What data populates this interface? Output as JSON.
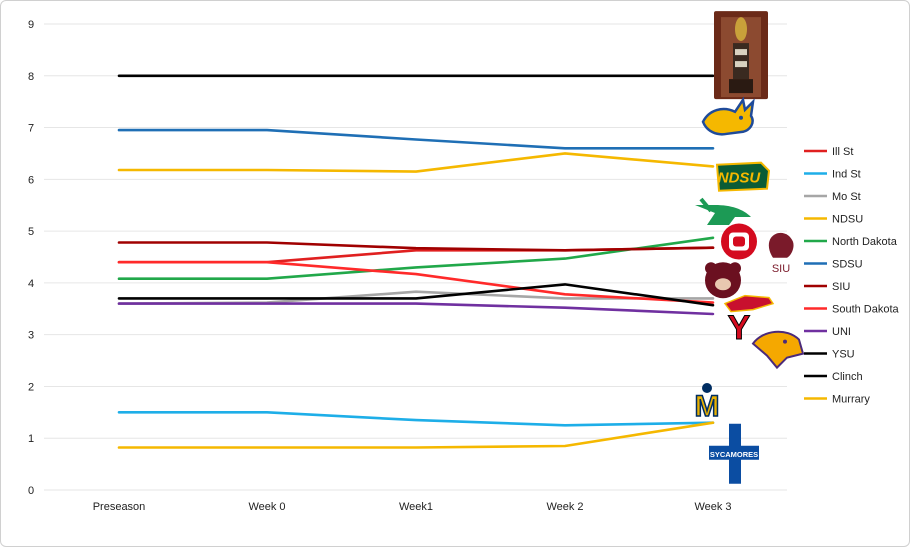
{
  "chart_data": {
    "type": "line",
    "title": "",
    "xlabel": "",
    "ylabel": "",
    "ylim": [
      0,
      9
    ],
    "yticks": [
      0,
      1,
      2,
      3,
      4,
      5,
      6,
      7,
      8,
      9
    ],
    "grid": "horizontal",
    "legend_position": "right",
    "categories": [
      "Preseason",
      "Week 0",
      "Week1",
      "Week 2",
      "Week 3"
    ],
    "series": [
      {
        "name": "Ill St",
        "color": "#e02020",
        "values": [
          4.4,
          4.4,
          4.63,
          4.63,
          4.68
        ]
      },
      {
        "name": "Ind St",
        "color": "#1eaee8",
        "values": [
          1.5,
          1.5,
          1.35,
          1.25,
          1.3
        ]
      },
      {
        "name": "Mo St",
        "color": "#a6a6a6",
        "values": [
          3.6,
          3.62,
          3.83,
          3.7,
          3.7
        ]
      },
      {
        "name": "NDSU",
        "color": "#f5b800",
        "values": [
          6.18,
          6.18,
          6.15,
          6.5,
          6.25
        ]
      },
      {
        "name": "North Dakota",
        "color": "#21a84a",
        "values": [
          4.08,
          4.08,
          4.3,
          4.47,
          4.87
        ]
      },
      {
        "name": "SDSU",
        "color": "#1f6fb5",
        "values": [
          6.95,
          6.95,
          6.77,
          6.6,
          6.6
        ]
      },
      {
        "name": "SIU",
        "color": "#a00000",
        "values": [
          4.78,
          4.78,
          4.67,
          4.63,
          4.68
        ]
      },
      {
        "name": "South Dakota",
        "color": "#ff2a2a",
        "values": [
          4.4,
          4.4,
          4.17,
          3.78,
          3.62
        ]
      },
      {
        "name": "UNI",
        "color": "#7030a0",
        "values": [
          3.6,
          3.6,
          3.6,
          3.52,
          3.4
        ]
      },
      {
        "name": "YSU",
        "color": "#000000",
        "values": [
          3.7,
          3.7,
          3.7,
          3.97,
          3.57
        ]
      },
      {
        "name": "Clinch",
        "color": "#000000",
        "values": [
          8,
          8,
          8,
          8,
          8
        ]
      },
      {
        "name": "Murrary",
        "color": "#f5b800",
        "values": [
          0.82,
          0.82,
          0.82,
          0.85,
          1.3
        ]
      }
    ]
  },
  "logos": [
    {
      "name": "trophy-logo",
      "value": 8.4
    },
    {
      "name": "sdsu-jackrabbit-logo",
      "value": 7.15
    },
    {
      "name": "ndsu-bison-logo",
      "value": 6.05
    },
    {
      "name": "north-dakota-logo",
      "value": 5.35
    },
    {
      "name": "south-dakota-logo",
      "value": 4.8
    },
    {
      "name": "siu-saluki-logo",
      "value": 4.6
    },
    {
      "name": "missouri-state-bear-logo",
      "value": 4.05
    },
    {
      "name": "illinois-state-redbird-logo",
      "value": 3.6
    },
    {
      "name": "ysu-logo",
      "value": 3.15
    },
    {
      "name": "uni-panther-logo",
      "value": 2.75
    },
    {
      "name": "murray-state-logo",
      "value": 1.7
    },
    {
      "name": "indiana-state-logo",
      "value": 0.7
    }
  ],
  "logo_text": {
    "ndsu": "NDSU",
    "siu": "SIU",
    "ysu": "Y",
    "murray": "M",
    "indiana": "SYCAMORES"
  }
}
